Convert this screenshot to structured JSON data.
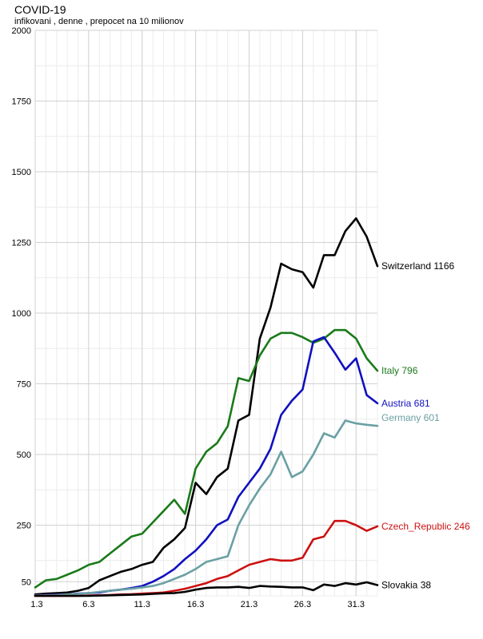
{
  "chart_data": {
    "type": "line",
    "title": "COVID-19",
    "subtitle": "infikovani , denne , prepocet na 10 milionov",
    "xlabel": "",
    "ylabel": "",
    "x_start_label": "1.3",
    "x_tick_labels": [
      "1.3",
      "6.3",
      "11.3",
      "16.3",
      "21.3",
      "26.3",
      "31.3"
    ],
    "x_tick_days": [
      1,
      6,
      11,
      16,
      21,
      26,
      31
    ],
    "xlim": [
      1,
      33
    ],
    "ylim": [
      0,
      2000
    ],
    "y_ticks": [
      50,
      250,
      500,
      750,
      1000,
      1250,
      1500,
      1750,
      2000
    ],
    "grid": true,
    "legend": "end-of-line labels",
    "series": [
      {
        "name": "Switzerland",
        "end_value": 1166,
        "color": "#000000",
        "x": [
          1,
          2,
          3,
          4,
          5,
          6,
          7,
          8,
          9,
          10,
          11,
          12,
          13,
          14,
          15,
          16,
          17,
          18,
          19,
          20,
          21,
          22,
          23,
          24,
          25,
          26,
          27,
          28,
          29,
          30,
          31,
          32,
          33
        ],
        "values": [
          5,
          8,
          10,
          12,
          18,
          28,
          55,
          70,
          85,
          95,
          110,
          120,
          170,
          200,
          240,
          400,
          360,
          420,
          450,
          620,
          640,
          910,
          1020,
          1175,
          1155,
          1145,
          1090,
          1205,
          1205,
          1290,
          1335,
          1270,
          1166
        ]
      },
      {
        "name": "Italy",
        "end_value": 796,
        "color": "#1a7a1a",
        "x": [
          1,
          2,
          3,
          4,
          5,
          6,
          7,
          8,
          9,
          10,
          11,
          12,
          13,
          14,
          15,
          16,
          17,
          18,
          19,
          20,
          21,
          22,
          23,
          24,
          25,
          26,
          27,
          28,
          29,
          30,
          31,
          32,
          33
        ],
        "values": [
          30,
          55,
          60,
          75,
          90,
          110,
          120,
          150,
          180,
          210,
          220,
          260,
          300,
          340,
          290,
          450,
          510,
          540,
          600,
          770,
          760,
          850,
          910,
          930,
          930,
          915,
          895,
          910,
          940,
          940,
          910,
          840,
          796
        ]
      },
      {
        "name": "Austria",
        "end_value": 681,
        "color": "#1010c0",
        "x": [
          1,
          2,
          3,
          4,
          5,
          6,
          7,
          8,
          9,
          10,
          11,
          12,
          13,
          14,
          15,
          16,
          17,
          18,
          19,
          20,
          21,
          22,
          23,
          24,
          25,
          26,
          27,
          28,
          29,
          30,
          31,
          32,
          33
        ],
        "values": [
          2,
          3,
          4,
          5,
          8,
          10,
          12,
          18,
          22,
          28,
          35,
          50,
          70,
          95,
          130,
          160,
          200,
          250,
          270,
          350,
          400,
          450,
          520,
          640,
          690,
          730,
          900,
          915,
          860,
          800,
          840,
          710,
          681
        ]
      },
      {
        "name": "Germany",
        "end_value": 601,
        "color": "#6aa0a4",
        "x": [
          1,
          2,
          3,
          4,
          5,
          6,
          7,
          8,
          9,
          10,
          11,
          12,
          13,
          14,
          15,
          16,
          17,
          18,
          19,
          20,
          21,
          22,
          23,
          24,
          25,
          26,
          27,
          28,
          29,
          30,
          31,
          32,
          33
        ],
        "values": [
          1,
          2,
          3,
          5,
          7,
          10,
          14,
          18,
          22,
          25,
          30,
          35,
          45,
          60,
          75,
          95,
          120,
          130,
          140,
          250,
          320,
          380,
          430,
          510,
          420,
          440,
          500,
          575,
          560,
          620,
          610,
          605,
          601
        ]
      },
      {
        "name": "Czech_Republic",
        "end_value": 246,
        "color": "#cc1111",
        "x": [
          1,
          2,
          3,
          4,
          5,
          6,
          7,
          8,
          9,
          10,
          11,
          12,
          13,
          14,
          15,
          16,
          17,
          18,
          19,
          20,
          21,
          22,
          23,
          24,
          25,
          26,
          27,
          28,
          29,
          30,
          31,
          32,
          33
        ],
        "values": [
          0,
          0,
          0,
          0,
          0,
          1,
          2,
          3,
          5,
          6,
          8,
          10,
          12,
          18,
          25,
          35,
          45,
          60,
          70,
          90,
          110,
          120,
          130,
          125,
          125,
          135,
          200,
          210,
          265,
          265,
          250,
          230,
          246
        ]
      },
      {
        "name": "Slovakia",
        "end_value": 38,
        "color": "#000000",
        "x": [
          1,
          2,
          3,
          4,
          5,
          6,
          7,
          8,
          9,
          10,
          11,
          12,
          13,
          14,
          15,
          16,
          17,
          18,
          19,
          20,
          21,
          22,
          23,
          24,
          25,
          26,
          27,
          28,
          29,
          30,
          31,
          32,
          33
        ],
        "values": [
          0,
          0,
          0,
          0,
          0,
          0,
          1,
          2,
          3,
          4,
          5,
          7,
          9,
          10,
          14,
          22,
          28,
          30,
          30,
          32,
          28,
          35,
          33,
          32,
          30,
          30,
          20,
          40,
          35,
          45,
          40,
          48,
          38
        ]
      }
    ]
  }
}
